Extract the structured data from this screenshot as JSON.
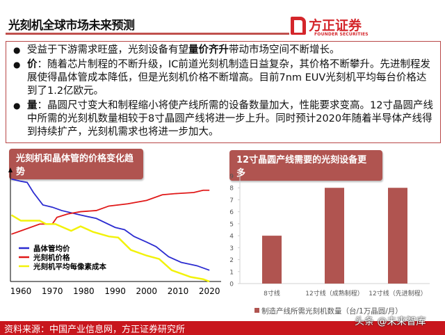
{
  "header": {
    "title": "光刻机全球市场未来预测",
    "logo_cn": "方正证券",
    "logo_en": "FOUNDER SECURITIES"
  },
  "bullets": [
    {
      "pre": "受益于下游需求旺盛，光刻设备有望",
      "bold": "量价齐升",
      "post": "带动市场空间不断增长。"
    },
    {
      "bold": "价",
      "post": "：随着芯片制程的不断升级，IC前道光刻机制造日益复杂，其价格不断攀升。先进制程发展使得晶体管成本降低，但是光刻机价格不断增高。目前7nm EUV光刻机平均每台价格达到了1.2亿欧元。"
    },
    {
      "bold": "量",
      "post": "：晶圆尺寸变大和制程缩小将使产线所需的设备数量加大，性能要求变高。12寸晶圆产线中所需的光刻机数量相较于8寸晶圆产线将进一步上升。同时预计2020年随着半导体产线得到持续扩产，光刻机需求也将进一步加大。"
    }
  ],
  "chart_data": [
    {
      "type": "line",
      "title": "光刻机和晶体管的价格变化趋势",
      "xlabel": "",
      "ylabel": "",
      "xlim": [
        1957,
        2021
      ],
      "ylim": [
        0,
        100
      ],
      "x_ticks": [
        "1960",
        "1970",
        "1980",
        "1990",
        "2000",
        "2010",
        "2020"
      ],
      "grid": false,
      "legend": "bottom-left",
      "series": [
        {
          "name": "晶体管均价",
          "color": "#2b2bd0",
          "points": [
            [
              1957,
              91
            ],
            [
              1960,
              89
            ],
            [
              1962,
              88
            ],
            [
              1964,
              79
            ],
            [
              1967,
              68
            ],
            [
              1970,
              66
            ],
            [
              1973,
              63
            ],
            [
              1979,
              59
            ],
            [
              1984,
              56
            ],
            [
              1990,
              48
            ],
            [
              1993,
              46
            ],
            [
              1996,
              40
            ],
            [
              2000,
              35
            ],
            [
              2003,
              31
            ],
            [
              2007,
              22
            ],
            [
              2011,
              17
            ],
            [
              2016,
              14
            ],
            [
              2020,
              10
            ]
          ]
        },
        {
          "name": "光刻机价格",
          "color": "#e01818",
          "points": [
            [
              1957,
              42
            ],
            [
              1960,
              45
            ],
            [
              1966,
              51
            ],
            [
              1970,
              51
            ],
            [
              1971.5,
              57
            ],
            [
              1975,
              60
            ],
            [
              1979,
              62
            ],
            [
              1984,
              63
            ],
            [
              1988,
              67
            ],
            [
              1994,
              69
            ],
            [
              2000,
              72
            ],
            [
              2005,
              77
            ],
            [
              2009,
              78
            ],
            [
              2015,
              79
            ],
            [
              2018,
              81
            ],
            [
              2020,
              81
            ]
          ]
        },
        {
          "name": "光刻机平均每像素成本",
          "color": "#f2f20a",
          "points": [
            [
              1957,
              59
            ],
            [
              1960,
              54
            ],
            [
              1966,
              54
            ],
            [
              1968,
              51
            ],
            [
              1971,
              51
            ],
            [
              1976,
              45
            ],
            [
              1979,
              49
            ],
            [
              1983,
              44
            ],
            [
              1988,
              40
            ],
            [
              1991,
              39
            ],
            [
              1995,
              28
            ],
            [
              2000,
              23
            ],
            [
              2004,
              20
            ],
            [
              2008,
              10
            ],
            [
              2014,
              4
            ],
            [
              2018,
              2
            ],
            [
              2020,
              0
            ]
          ]
        }
      ]
    },
    {
      "type": "bar",
      "title": "12寸晶圆产线需要的光刻设备更多",
      "categories": [
        "8寸线",
        "12寸线（成熟制程）",
        "12寸线（先进制程）"
      ],
      "series": [
        {
          "name": "制造产线所需光刻机数量（台/1万晶圆/月）",
          "values": [
            4,
            8,
            8
          ],
          "color": "#b05450"
        }
      ],
      "ylim": [
        0,
        9
      ],
      "y_ticks": [
        0,
        1,
        2,
        3,
        4,
        5,
        6,
        7,
        8,
        9
      ],
      "legend": "bottom"
    }
  ],
  "footer": {
    "source": "资料来源：中国产业信息网，方正证券研究所"
  },
  "watermark": "头条 @未来智库"
}
